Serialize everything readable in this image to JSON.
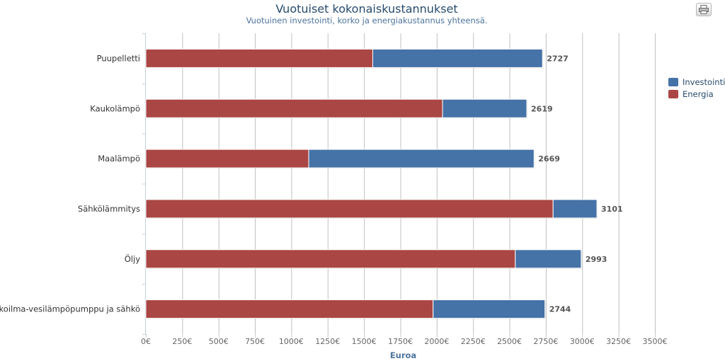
{
  "print_button_icon": "printer-icon",
  "chart_data": {
    "type": "bar",
    "orientation": "horizontal",
    "stacked": true,
    "title": "Vuotuiset kokonaiskustannukset",
    "subtitle": "Vuotuinen investointi, korko ja energiakustannus yhteensä.",
    "xlabel": "Euroa",
    "xlim": [
      0,
      3500
    ],
    "tick_step": 250,
    "tick_suffix": "€",
    "grid": true,
    "legend_position": "right",
    "categories": [
      "Puupelletti",
      "Kaukolämpö",
      "Maalämpö",
      "Sähkölämmitys",
      "Öljy",
      "Ulkoilma-vesilämpöpumppu ja sähkö"
    ],
    "series": [
      {
        "name": "Energia",
        "color": "#aa4643",
        "values": [
          1560,
          2040,
          1120,
          2800,
          2540,
          1975
        ]
      },
      {
        "name": "Investointi",
        "color": "#4572a7",
        "values": [
          1167,
          579,
          1549,
          301,
          453,
          769
        ]
      }
    ],
    "totals": [
      2727,
      2619,
      2669,
      3101,
      2993,
      2744
    ]
  }
}
